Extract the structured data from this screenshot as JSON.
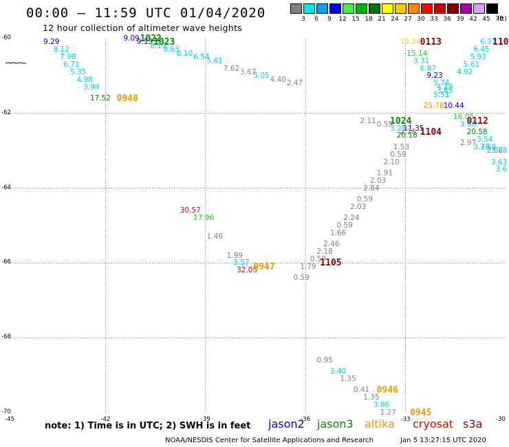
{
  "title": "00:00 – 11:59 UTC 01/04/2020",
  "subtitle": "12 hour collection of altimeter wave heights",
  "legend": {
    "unit": "(ft)",
    "bins": [
      {
        "label": "3",
        "color": "#808080"
      },
      {
        "label": "6",
        "color": "#00e8e8"
      },
      {
        "label": "9",
        "color": "#00a0ff"
      },
      {
        "label": "12",
        "color": "#0000e0"
      },
      {
        "label": "15",
        "color": "#40ee40"
      },
      {
        "label": "18",
        "color": "#00b000"
      },
      {
        "label": "21",
        "color": "#007000"
      },
      {
        "label": "24",
        "color": "#ffff00"
      },
      {
        "label": "27",
        "color": "#ffc800"
      },
      {
        "label": "30",
        "color": "#ff8c00"
      },
      {
        "label": "33",
        "color": "#ff0000"
      },
      {
        "label": "36",
        "color": "#c80000"
      },
      {
        "label": "39",
        "color": "#800000"
      },
      {
        "label": "42",
        "color": "#a000a0"
      },
      {
        "label": "45",
        "color": "#d8a0ff"
      },
      {
        "label": "70",
        "color": "#000000"
      }
    ]
  },
  "axes": {
    "lat_labels": [
      "-60",
      "-62",
      "-64",
      "-66",
      "-68",
      "-70"
    ],
    "lon_labels": [
      "-45",
      "-42",
      "-39",
      "-36",
      "-33",
      "-30"
    ]
  },
  "colors": {
    "gray": "#808080",
    "cyan": "#00d0f0",
    "blue": "#0000d0",
    "lgreen": "#22cc22",
    "green": "#008800",
    "dgreen": "#006600",
    "orange": "#ee9900",
    "red": "#e00000",
    "dred": "#880000",
    "yellow": "#e8e800"
  },
  "points": [
    {
      "lat": -60.1,
      "lon": -43.7,
      "text": "9.29",
      "color": "blue"
    },
    {
      "lat": -60.3,
      "lon": -43.4,
      "text": "8.12",
      "color": "cyan"
    },
    {
      "lat": -60.5,
      "lon": -43.2,
      "text": "7.98",
      "color": "cyan"
    },
    {
      "lat": -60.7,
      "lon": -43.1,
      "text": "6.71",
      "color": "cyan"
    },
    {
      "lat": -60.9,
      "lon": -42.9,
      "text": "5.35",
      "color": "cyan"
    },
    {
      "lat": -61.1,
      "lon": -42.7,
      "text": "4.98",
      "color": "cyan"
    },
    {
      "lat": -61.3,
      "lon": -42.5,
      "text": "3.99",
      "color": "cyan"
    },
    {
      "lat": -61.6,
      "lon": -42.3,
      "text": "17.52",
      "color": "green"
    },
    {
      "lat": -60.0,
      "lon": -41.3,
      "text": "9.09",
      "color": "blue"
    },
    {
      "lat": -60.1,
      "lon": -40.9,
      "text": "9.13",
      "color": "blue"
    },
    {
      "lat": -60.2,
      "lon": -40.5,
      "text": "8.19",
      "color": "cyan"
    },
    {
      "lat": -60.3,
      "lon": -40.1,
      "text": "8.63",
      "color": "cyan"
    },
    {
      "lat": -60.4,
      "lon": -39.7,
      "text": "8.10",
      "color": "cyan"
    },
    {
      "lat": -60.5,
      "lon": -39.2,
      "text": "6.54",
      "color": "cyan"
    },
    {
      "lat": -60.6,
      "lon": -38.8,
      "text": "5.61",
      "color": "cyan"
    },
    {
      "lat": -60.8,
      "lon": -38.3,
      "text": "7.62",
      "color": "gray"
    },
    {
      "lat": -60.9,
      "lon": -37.8,
      "text": "3.67",
      "color": "gray"
    },
    {
      "lat": -61.0,
      "lon": -37.4,
      "text": "5.05",
      "color": "cyan"
    },
    {
      "lat": -61.1,
      "lon": -36.9,
      "text": "4.40",
      "color": "gray"
    },
    {
      "lat": -61.2,
      "lon": -36.4,
      "text": "2.47",
      "color": "gray"
    },
    {
      "lat": -60.1,
      "lon": -33.0,
      "text": "13.24",
      "color": "yellow"
    },
    {
      "lat": -60.4,
      "lon": -32.8,
      "text": "15.14",
      "color": "lgreen"
    },
    {
      "lat": -60.6,
      "lon": -32.6,
      "text": "3.31",
      "color": "cyan"
    },
    {
      "lat": -60.8,
      "lon": -32.4,
      "text": "6.87",
      "color": "cyan"
    },
    {
      "lat": -61.0,
      "lon": -32.2,
      "text": "9.23",
      "color": "blue"
    },
    {
      "lat": -61.2,
      "lon": -32.0,
      "text": "5.74",
      "color": "cyan"
    },
    {
      "lat": -61.3,
      "lon": -31.9,
      "text": "4.18",
      "color": "cyan"
    },
    {
      "lat": -61.4,
      "lon": -31.9,
      "text": "3.85",
      "color": "cyan"
    },
    {
      "lat": -61.5,
      "lon": -32.0,
      "text": "5.51",
      "color": "cyan"
    },
    {
      "lat": -60.1,
      "lon": -30.6,
      "text": "6.31",
      "color": "cyan"
    },
    {
      "lat": -60.3,
      "lon": -30.8,
      "text": "6.45",
      "color": "cyan"
    },
    {
      "lat": -60.5,
      "lon": -30.9,
      "text": "5.93",
      "color": "cyan"
    },
    {
      "lat": -60.7,
      "lon": -31.1,
      "text": "5.61",
      "color": "cyan"
    },
    {
      "lat": -60.9,
      "lon": -31.3,
      "text": "4.92",
      "color": "cyan"
    },
    {
      "lat": -61.8,
      "lon": -32.3,
      "text": "25.78",
      "color": "orange"
    },
    {
      "lat": -61.8,
      "lon": -31.7,
      "text": "10.44",
      "color": "blue"
    },
    {
      "lat": -62.1,
      "lon": -31.4,
      "text": "16.05",
      "color": "lgreen"
    },
    {
      "lat": -62.3,
      "lon": -31.2,
      "text": "3.06",
      "color": "cyan"
    },
    {
      "lat": -62.5,
      "lon": -31.0,
      "text": "20.58",
      "color": "green"
    },
    {
      "lat": -62.7,
      "lon": -30.7,
      "text": "3.54",
      "color": "cyan"
    },
    {
      "lat": -62.8,
      "lon": -31.2,
      "text": "2.97",
      "color": "gray"
    },
    {
      "lat": -62.9,
      "lon": -30.8,
      "text": "3.78",
      "color": "cyan"
    },
    {
      "lat": -62.9,
      "lon": -30.6,
      "text": "3.68",
      "color": "cyan"
    },
    {
      "lat": -63.0,
      "lon": -30.4,
      "text": "2.82",
      "color": "gray"
    },
    {
      "lat": -63.0,
      "lon": -30.2,
      "text": "3.68",
      "color": "cyan"
    },
    {
      "lat": -63.3,
      "lon": -30.1,
      "text": "3.63",
      "color": "cyan"
    },
    {
      "lat": -63.5,
      "lon": -30.0,
      "text": "3.6",
      "color": "cyan"
    },
    {
      "lat": -62.2,
      "lon": -34.2,
      "text": "2.11",
      "color": "gray"
    },
    {
      "lat": -62.3,
      "lon": -33.7,
      "text": "0.59",
      "color": "gray"
    },
    {
      "lat": -62.4,
      "lon": -33.3,
      "text": "3.25",
      "color": "cyan"
    },
    {
      "lat": -62.4,
      "lon": -32.9,
      "text": "11.35",
      "color": "blue"
    },
    {
      "lat": -62.5,
      "lon": -33.0,
      "text": "2.26",
      "color": "gray"
    },
    {
      "lat": -62.6,
      "lon": -33.1,
      "text": "20.18",
      "color": "green"
    },
    {
      "lat": -62.9,
      "lon": -33.2,
      "text": "1.53",
      "color": "gray"
    },
    {
      "lat": -63.1,
      "lon": -33.3,
      "text": "0.59",
      "color": "gray"
    },
    {
      "lat": -63.3,
      "lon": -33.5,
      "text": "2.10",
      "color": "gray"
    },
    {
      "lat": -63.6,
      "lon": -33.7,
      "text": "1.91",
      "color": "gray"
    },
    {
      "lat": -63.8,
      "lon": -33.9,
      "text": "2.03",
      "color": "gray"
    },
    {
      "lat": -64.0,
      "lon": -34.1,
      "text": "2.84",
      "color": "gray"
    },
    {
      "lat": -64.3,
      "lon": -34.3,
      "text": "0.59",
      "color": "gray"
    },
    {
      "lat": -64.5,
      "lon": -34.5,
      "text": "2.03",
      "color": "gray"
    },
    {
      "lat": -64.8,
      "lon": -34.7,
      "text": "2.24",
      "color": "gray"
    },
    {
      "lat": -65.0,
      "lon": -34.9,
      "text": "0.59",
      "color": "gray"
    },
    {
      "lat": -65.2,
      "lon": -35.1,
      "text": "1.66",
      "color": "gray"
    },
    {
      "lat": -65.5,
      "lon": -35.3,
      "text": "2.46",
      "color": "gray"
    },
    {
      "lat": -65.7,
      "lon": -35.5,
      "text": "2.18",
      "color": "gray"
    },
    {
      "lat": -65.9,
      "lon": -35.7,
      "text": "0.59",
      "color": "gray"
    },
    {
      "lat": -66.1,
      "lon": -36.0,
      "text": "1.79",
      "color": "gray"
    },
    {
      "lat": -66.4,
      "lon": -36.2,
      "text": "0.59",
      "color": "gray"
    },
    {
      "lat": -64.6,
      "lon": -39.6,
      "text": "30.57",
      "color": "red"
    },
    {
      "lat": -64.8,
      "lon": -39.2,
      "text": "17.96",
      "color": "lgreen"
    },
    {
      "lat": -65.3,
      "lon": -38.8,
      "text": "1.46",
      "color": "gray"
    },
    {
      "lat": -65.8,
      "lon": -38.2,
      "text": "1.99",
      "color": "gray"
    },
    {
      "lat": -66.0,
      "lon": -38.0,
      "text": "3.57",
      "color": "cyan"
    },
    {
      "lat": -66.2,
      "lon": -37.9,
      "text": "32.05",
      "color": "red"
    },
    {
      "lat": -68.6,
      "lon": -35.5,
      "text": "0.95",
      "color": "gray"
    },
    {
      "lat": -68.9,
      "lon": -35.1,
      "text": "3.40",
      "color": "cyan"
    },
    {
      "lat": -69.1,
      "lon": -34.8,
      "text": "1.35",
      "color": "gray"
    },
    {
      "lat": -69.4,
      "lon": -34.4,
      "text": "0.41",
      "color": "gray"
    },
    {
      "lat": -69.6,
      "lon": -34.1,
      "text": "1.35",
      "color": "gray"
    },
    {
      "lat": -69.8,
      "lon": -33.8,
      "text": "3.86",
      "color": "cyan"
    },
    {
      "lat": -70.0,
      "lon": -33.6,
      "text": "1.27",
      "color": "gray"
    }
  ],
  "times": [
    {
      "lat": -60.0,
      "lon": -40.8,
      "text": "1022",
      "color": "green"
    },
    {
      "lat": -60.1,
      "lon": -40.4,
      "text": "1023",
      "color": "green"
    },
    {
      "lat": -61.6,
      "lon": -41.5,
      "text": "0948",
      "color": "orange"
    },
    {
      "lat": -60.1,
      "lon": -32.4,
      "text": "0113",
      "color": "dred"
    },
    {
      "lat": -60.1,
      "lon": -30.0,
      "text": "110",
      "color": "dred"
    },
    {
      "lat": -62.2,
      "lon": -33.3,
      "text": "1024",
      "color": "green"
    },
    {
      "lat": -62.5,
      "lon": -32.4,
      "text": "1104",
      "color": "dred"
    },
    {
      "lat": -62.2,
      "lon": -31.0,
      "text": "0112",
      "color": "dred"
    },
    {
      "lat": -66.0,
      "lon": -35.4,
      "text": "1105",
      "color": "dred"
    },
    {
      "lat": -66.1,
      "lon": -37.4,
      "text": "0947",
      "color": "orange"
    },
    {
      "lat": -69.4,
      "lon": -33.7,
      "text": "0946",
      "color": "orange"
    },
    {
      "lat": -70.0,
      "lon": -32.7,
      "text": "0945",
      "color": "orange"
    }
  ],
  "note": "note: 1) Time is in UTC; 2) SWH is in feet",
  "satellites": [
    {
      "name": "jason2",
      "color": "#0000d0"
    },
    {
      "name": "jason3",
      "color": "#008800"
    },
    {
      "name": "altika",
      "color": "#ee9900"
    },
    {
      "name": "cryosat",
      "color": "#e00000"
    },
    {
      "name": "s3a",
      "color": "#880000"
    }
  ],
  "credit": "NOAA/NESDIS Center for Satellite Applications and Research",
  "timestamp": "Jan  5 13:27:15 UTC 2020"
}
